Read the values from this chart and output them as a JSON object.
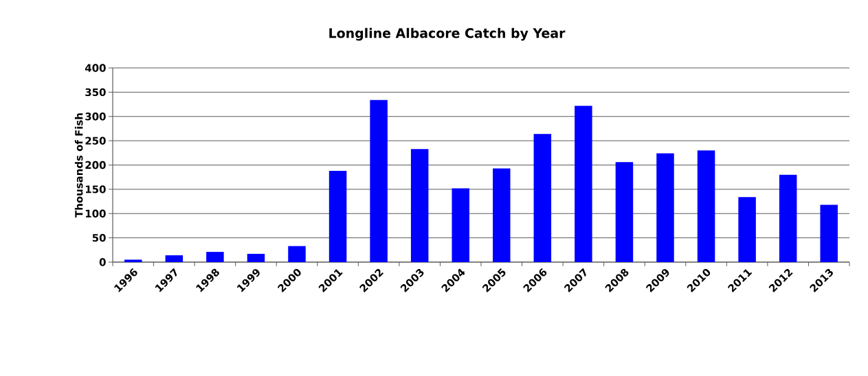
{
  "chart_data": {
    "type": "bar",
    "title": "Longline Albacore Catch by Year",
    "ylabel": "Thousands of Fish",
    "categories": [
      "1996",
      "1997",
      "1998",
      "1999",
      "2000",
      "2001",
      "2002",
      "2003",
      "2004",
      "2005",
      "2006",
      "2007",
      "2008",
      "2009",
      "2010",
      "2011",
      "2012",
      "2013"
    ],
    "values": [
      5,
      14,
      21,
      17,
      33,
      188,
      334,
      233,
      152,
      193,
      264,
      322,
      206,
      224,
      230,
      134,
      180,
      118
    ],
    "color": "#0000ff",
    "ylim": [
      0,
      400
    ],
    "yticks": [
      0,
      50,
      100,
      150,
      200,
      250,
      300,
      350,
      400
    ],
    "grid": "y"
  }
}
